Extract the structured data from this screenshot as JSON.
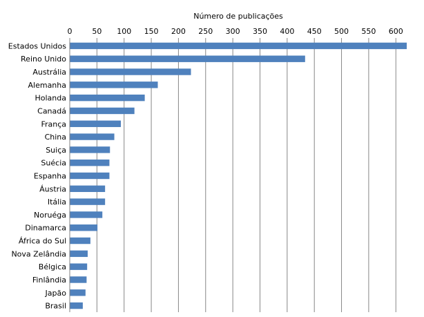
{
  "chart_data": {
    "type": "bar",
    "orientation": "horizontal",
    "xlabel": "Número de publicações",
    "xlabel_position": "top",
    "xlim": [
      0,
      620
    ],
    "xticks": [
      0,
      50,
      100,
      150,
      200,
      250,
      300,
      350,
      400,
      450,
      500,
      550,
      600
    ],
    "grid": "vertical",
    "legend": "none",
    "bar_color": "#4F81BD",
    "categories": [
      "Estados Unidos",
      "Reino Unido",
      "Austrália",
      "Alemanha",
      "Holanda",
      "Canadá",
      "França",
      "China",
      "Suiça",
      "Suécia",
      "Espanha",
      "Áustria",
      "Itália",
      "Noruéga",
      "Dinamarca",
      "África do Sul",
      "Nova Zelândia",
      "Bélgica",
      "Finlândia",
      "Japão",
      "Brasil"
    ],
    "values": [
      620,
      433,
      223,
      162,
      138,
      119,
      94,
      82,
      74,
      73,
      73,
      65,
      65,
      60,
      51,
      38,
      33,
      32,
      31,
      29,
      24
    ]
  }
}
